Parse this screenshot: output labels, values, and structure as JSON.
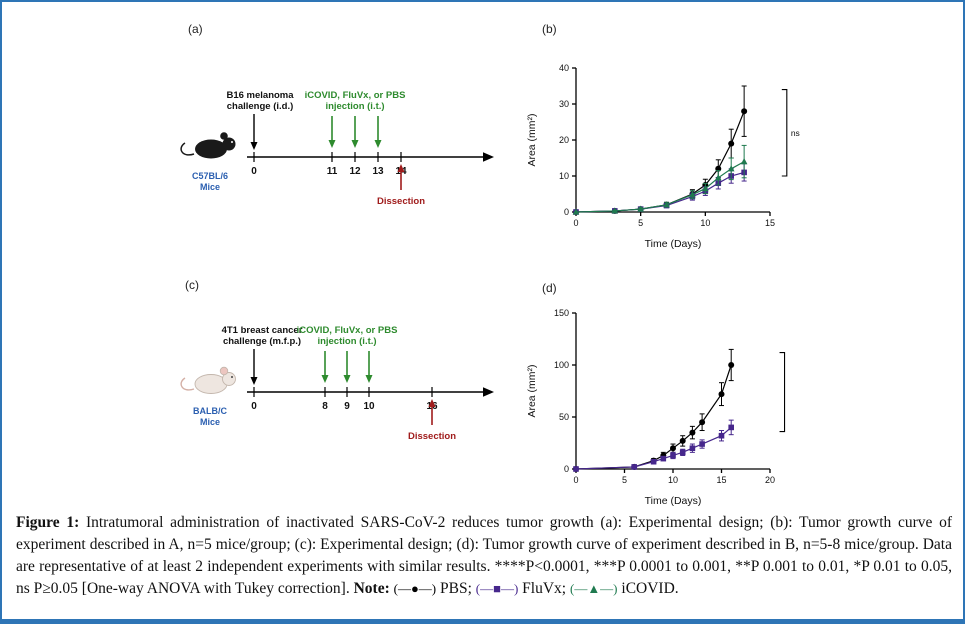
{
  "colors": {
    "border_blue": "#2e75b6",
    "injection_green": "#2e8b2e",
    "dissection_red": "#a01c1c",
    "mouse_label_blue": "#2b5fb0",
    "pbs_black": "#000000",
    "fluvx_purple": "#46278c",
    "icovid_green": "#1f7a4f"
  },
  "panels": {
    "a_label": "(a)",
    "b_label": "(b)",
    "c_label": "(c)",
    "d_label": "(d)"
  },
  "timeline_a": {
    "challenge_line1": "B16 melanoma",
    "challenge_line2": "challenge (i.d.)",
    "injection_line1": "iCOVID, FluVx, or PBS",
    "injection_line2": "injection (i.t.)",
    "mouse_line1": "C57BL/6",
    "mouse_line2": "Mice",
    "day0": "0",
    "day_ticks": [
      "11",
      "12",
      "13"
    ],
    "dissection_day": "14",
    "dissection": "Dissection"
  },
  "timeline_c": {
    "challenge_line1": "4T1 breast cancer",
    "challenge_line2": "challenge (m.f.p.)",
    "injection_line1": "iCOVID, FluVx, or PBS",
    "injection_line2": "injection (i.t.)",
    "mouse_line1": "BALB/C",
    "mouse_line2": "Mice",
    "day0": "0",
    "day_ticks": [
      "8",
      "9",
      "10"
    ],
    "dissection_day": "16",
    "dissection": "Dissection"
  },
  "chart_data": [
    {
      "id": "b",
      "type": "line",
      "title": "",
      "xlabel": "Time (Days)",
      "ylabel": "Area (mm²)",
      "xlim": [
        0,
        15
      ],
      "ylim": [
        0,
        40
      ],
      "xticks": [
        0,
        5,
        10,
        15
      ],
      "yticks": [
        0,
        10,
        20,
        30,
        40
      ],
      "grid": false,
      "legend_position": "caption-note",
      "bracket": {
        "x": 16.3,
        "top": 34,
        "bottom": 10,
        "label": "ns"
      },
      "series": [
        {
          "name": "PBS",
          "color": "#000000",
          "marker": "circle",
          "x": [
            0,
            3,
            5,
            7,
            9,
            10,
            11,
            12,
            13
          ],
          "y": [
            0,
            0.3,
            0.8,
            2,
            5,
            7.5,
            12,
            19,
            28
          ],
          "err": [
            0,
            0.2,
            0.4,
            0.7,
            1.2,
            1.6,
            2.5,
            4,
            7
          ]
        },
        {
          "name": "FluVx",
          "color": "#46278c",
          "marker": "square",
          "x": [
            0,
            3,
            5,
            7,
            9,
            10,
            11,
            12,
            13
          ],
          "y": [
            0,
            0.3,
            0.8,
            1.8,
            4.3,
            5.8,
            8,
            10,
            11
          ],
          "err": [
            0,
            0.2,
            0.4,
            0.6,
            1,
            1.2,
            1.6,
            2,
            2.4
          ]
        },
        {
          "name": "iCOVID",
          "color": "#1f7a4f",
          "marker": "triangle",
          "x": [
            0,
            3,
            5,
            7,
            9,
            10,
            11,
            12,
            13
          ],
          "y": [
            0,
            0.3,
            0.8,
            2,
            4.8,
            6.5,
            9.5,
            12,
            14
          ],
          "err": [
            0,
            0.2,
            0.4,
            0.6,
            1.1,
            1.4,
            2,
            3,
            4.5
          ]
        }
      ]
    },
    {
      "id": "d",
      "type": "line",
      "title": "",
      "xlabel": "Time (Days)",
      "ylabel": "Area (mm²)",
      "xlim": [
        0,
        20
      ],
      "ylim": [
        0,
        150
      ],
      "xticks": [
        0,
        5,
        10,
        15,
        20
      ],
      "yticks": [
        0,
        50,
        100,
        150
      ],
      "grid": false,
      "legend_position": "caption-note",
      "bracket": {
        "x": 21.5,
        "top": 112,
        "bottom": 36,
        "label": ""
      },
      "series": [
        {
          "name": "PBS",
          "color": "#000000",
          "marker": "circle",
          "x": [
            0,
            6,
            8,
            9,
            10,
            11,
            12,
            13,
            15,
            16
          ],
          "y": [
            0,
            2,
            8,
            13,
            20,
            27,
            35,
            45,
            72,
            100
          ],
          "err": [
            0,
            1,
            2,
            3,
            4,
            5,
            6,
            8,
            11,
            15
          ]
        },
        {
          "name": "FluVx",
          "color": "#46278c",
          "marker": "square",
          "x": [
            0,
            6,
            8,
            9,
            10,
            11,
            12,
            13,
            15,
            16
          ],
          "y": [
            0,
            2,
            7,
            10,
            13,
            16,
            20,
            24,
            32,
            40
          ],
          "err": [
            0,
            1,
            2,
            2,
            3,
            3,
            4,
            4,
            5,
            7
          ]
        }
      ]
    }
  ],
  "caption": {
    "figure_label": "Figure 1:",
    "body": "Intratumoral administration of inactivated SARS-CoV-2 reduces tumor growth (a): Experimental design; (b): Tumor growth curve of experiment described in A, n=5 mice/group; (c): Experimental design; (d): Tumor growth curve of experiment described in B, n=5-8 mice/group. Data are representative of at least 2 independent experiments with similar results. ****P<0.0001, ***P 0.0001 to 0.001, **P 0.001 to 0.01, *P 0.01 to 0.05, ns P≥0.05 [One-way ANOVA with Tukey correction].",
    "note_label": "Note:",
    "note": [
      {
        "glyph": "(—●—)",
        "label": "PBS;",
        "series": "PBS"
      },
      {
        "glyph": "(—■—)",
        "label": "FluVx;",
        "series": "FluVx"
      },
      {
        "glyph": "(—▲—)",
        "label": "iCOVID.",
        "series": "iCOVID"
      }
    ]
  }
}
